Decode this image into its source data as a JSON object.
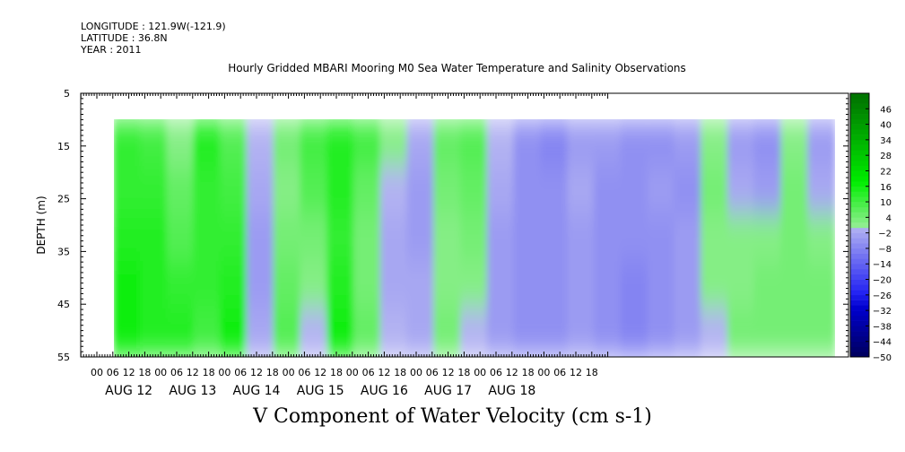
{
  "meta": {
    "longitude": "LONGITUDE : 121.9W(-121.9)",
    "latitude": "LATITUDE : 36.8N",
    "year": "YEAR : 2011"
  },
  "chart_data": {
    "type": "heatmap",
    "title": "Hourly Gridded MBARI Mooring M0 Sea Water Temperature and Salinity Observations",
    "xlabel": "V Component of Water Velocity (cm s-1)",
    "ylabel": "DEPTH (m)",
    "ylim": [
      5,
      55
    ],
    "y_reversed": true,
    "y_ticks": [
      5,
      15,
      25,
      35,
      45,
      55
    ],
    "x_hour_ticks": [
      "00",
      "06",
      "12",
      "18",
      "00",
      "06",
      "12",
      "18",
      "00",
      "06",
      "12",
      "18",
      "00",
      "06",
      "12",
      "18",
      "00",
      "06",
      "12",
      "18",
      "00",
      "06",
      "12",
      "18",
      "00",
      "06",
      "12",
      "18",
      "00",
      "06",
      "12",
      "18"
    ],
    "x_day_labels": [
      "AUG 12",
      "AUG 13",
      "AUG 14",
      "AUG 15",
      "AUG 16",
      "AUG 17",
      "AUG 18"
    ],
    "colorbar_ticks": [
      46,
      40,
      34,
      28,
      22,
      16,
      10,
      4,
      -2,
      -8,
      -14,
      -20,
      -26,
      -32,
      -38,
      -44,
      -50
    ],
    "colorbar_range": [
      -50,
      52
    ],
    "data_depth_range": [
      10,
      55
    ],
    "time_columns": [
      "AUG 12 06",
      "AUG 12 12",
      "AUG 12 18",
      "AUG 13 00",
      "AUG 13 06",
      "AUG 13 12",
      "AUG 13 18",
      "AUG 14 00",
      "AUG 14 06",
      "AUG 14 12",
      "AUG 14 18",
      "AUG 15 00",
      "AUG 15 06",
      "AUG 15 12",
      "AUG 15 18",
      "AUG 16 00",
      "AUG 16 06",
      "AUG 16 12",
      "AUG 16 18",
      "AUG 17 00",
      "AUG 17 06",
      "AUG 17 12",
      "AUG 17 18",
      "AUG 18 00",
      "AUG 18 06",
      "AUG 18 12",
      "AUG 18 18"
    ],
    "depth_rows": [
      10,
      20,
      30,
      40,
      50
    ],
    "values": [
      [
        12,
        10,
        2,
        14,
        8,
        0,
        4,
        10,
        14,
        10,
        2,
        -2,
        6,
        8,
        0,
        -6,
        -8,
        -4,
        -4,
        -6,
        -6,
        -4,
        2,
        -4,
        -6,
        2,
        -4
      ],
      [
        12,
        12,
        6,
        12,
        10,
        -2,
        2,
        8,
        14,
        6,
        0,
        -4,
        4,
        6,
        -2,
        -6,
        -6,
        -2,
        -6,
        -6,
        -4,
        -6,
        4,
        -2,
        -4,
        4,
        -2
      ],
      [
        14,
        14,
        8,
        12,
        12,
        -4,
        4,
        4,
        12,
        4,
        -2,
        -4,
        2,
        4,
        -4,
        -6,
        -6,
        -4,
        -6,
        -6,
        -6,
        -4,
        2,
        2,
        2,
        4,
        2
      ],
      [
        16,
        14,
        12,
        12,
        14,
        -4,
        6,
        2,
        14,
        4,
        -2,
        -2,
        2,
        2,
        -4,
        -6,
        -6,
        -4,
        -6,
        -8,
        -6,
        -4,
        2,
        2,
        4,
        4,
        4
      ],
      [
        16,
        14,
        14,
        10,
        16,
        -2,
        8,
        0,
        16,
        6,
        0,
        -2,
        4,
        0,
        -4,
        -6,
        -6,
        -4,
        -6,
        -8,
        -6,
        -4,
        0,
        4,
        4,
        4,
        4
      ]
    ]
  }
}
